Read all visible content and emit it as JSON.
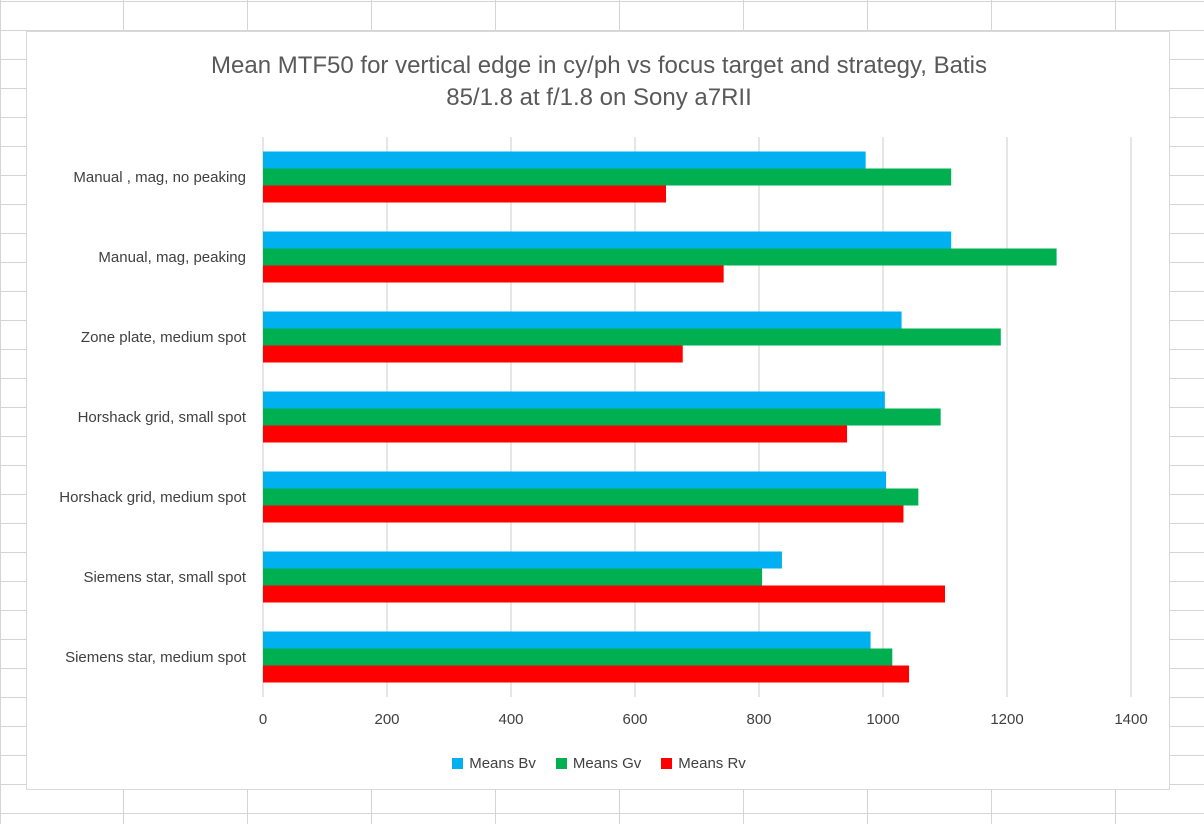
{
  "chart_data": {
    "type": "bar",
    "orientation": "horizontal",
    "title_line1": "Mean MTF50 for vertical edge in cy/ph vs focus target and strategy, Batis",
    "title_line2": "85/1.8 at f/1.8 on Sony a7RII",
    "categories": [
      "Manual , mag, no peaking",
      "Manual, mag, peaking",
      "Zone plate, medium spot",
      "Horshack grid, small spot",
      "Horshack grid, medium spot",
      "Siemens star, small spot",
      "Siemens star, medium spot"
    ],
    "series": [
      {
        "name": "Means Bv",
        "color": "#00b0f0",
        "values": [
          972,
          1110,
          1030,
          1003,
          1005,
          837,
          980
        ]
      },
      {
        "name": "Means Gv",
        "color": "#00b050",
        "values": [
          1110,
          1280,
          1190,
          1093,
          1057,
          805,
          1015
        ]
      },
      {
        "name": "Means Rv",
        "color": "#ff0000",
        "values": [
          650,
          743,
          677,
          942,
          1033,
          1100,
          1042
        ]
      }
    ],
    "xlim": [
      0,
      1400
    ],
    "xticks": [
      "0",
      "200",
      "400",
      "600",
      "800",
      "1000",
      "1200",
      "1400"
    ],
    "grid": true,
    "legend_position": "bottom"
  }
}
